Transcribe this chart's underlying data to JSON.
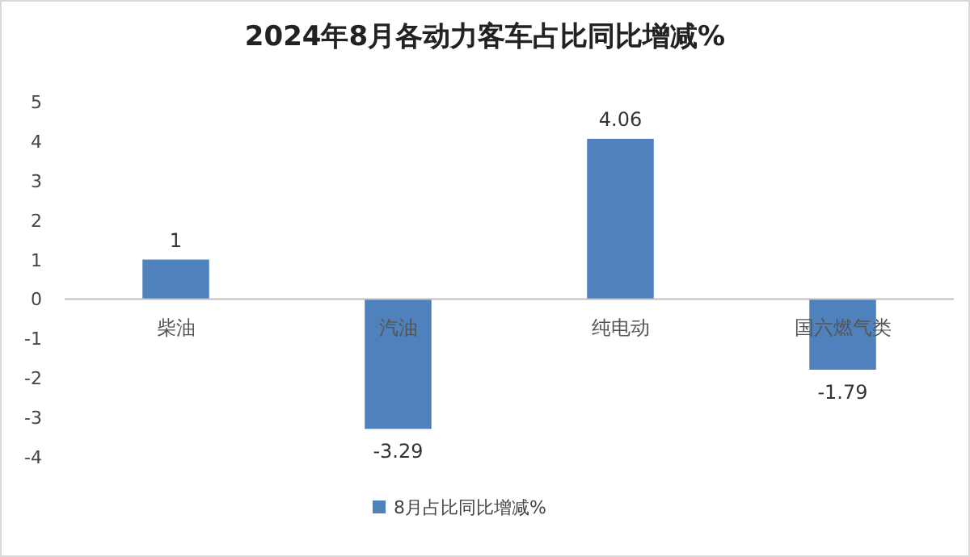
{
  "chart_data": {
    "type": "bar",
    "title": "2024年8月各动力客车占比同比增减%",
    "categories": [
      "柴油",
      "汽油",
      "纯电动",
      "国六燃气类"
    ],
    "series": [
      {
        "name": "8月占比同比增减%",
        "color": "#4f81bd",
        "values": [
          1,
          -3.29,
          4.06,
          -1.79
        ]
      }
    ],
    "ylim": [
      -4,
      5
    ],
    "yticks": [
      -4,
      -3,
      -2,
      -1,
      0,
      1,
      2,
      3,
      4,
      5
    ],
    "data_labels": true,
    "legend": "bottom"
  }
}
